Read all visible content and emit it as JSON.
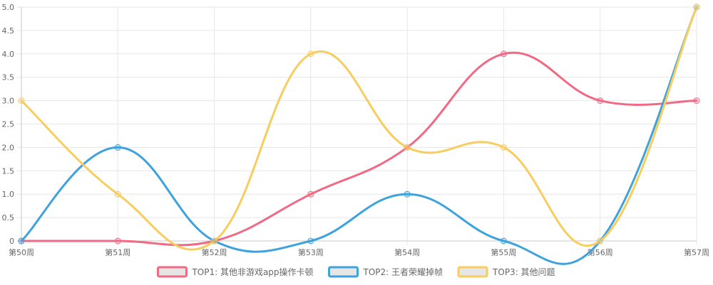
{
  "chart_data": {
    "type": "line",
    "categories": [
      "第50周",
      "第51周",
      "第52周",
      "第53周",
      "第54周",
      "第55周",
      "第56周",
      "第57周"
    ],
    "series": [
      {
        "name": "TOP1: 其他非游戏app操作卡顿",
        "color": "#f06a86",
        "values": [
          0,
          0,
          0,
          1,
          2,
          4,
          3,
          3
        ]
      },
      {
        "name": "TOP2: 王者荣耀掉帧",
        "color": "#3ea2dc",
        "values": [
          0,
          2,
          0,
          0,
          1,
          0,
          0,
          5
        ]
      },
      {
        "name": "TOP3: 其他问题",
        "color": "#f8cd5f",
        "values": [
          3,
          1,
          0,
          4,
          2,
          2,
          0,
          5
        ]
      }
    ],
    "y_ticks": [
      "0",
      "0.5",
      "1.0",
      "1.5",
      "2.0",
      "2.5",
      "3.0",
      "3.5",
      "4.0",
      "4.5",
      "5.0"
    ],
    "ylim": [
      0,
      5
    ],
    "grid": true,
    "legend_position": "bottom-center",
    "smooth": true
  }
}
